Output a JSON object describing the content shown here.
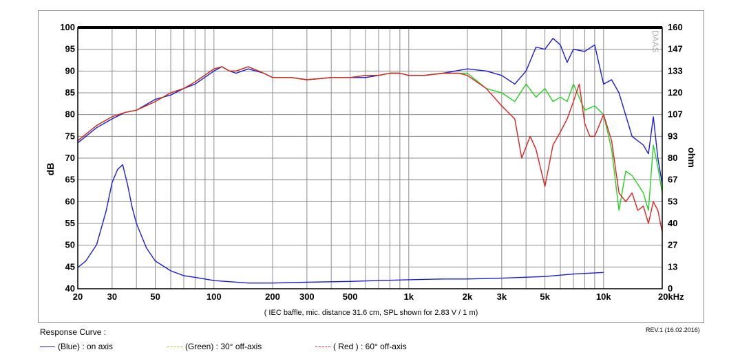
{
  "chart_data": {
    "type": "line",
    "title": "",
    "xlabel": "( IEC baffle, mic. distance 31.6 cm, SPL shown for 2.83 V / 1 m)",
    "ylabel": "dB",
    "y2label": "ohm",
    "x_scale": "log",
    "xlim": [
      20,
      20000
    ],
    "ylim": [
      40,
      100
    ],
    "y2lim": [
      0,
      160
    ],
    "grid": true,
    "x_tick_labels": [
      "20",
      "30",
      "50",
      "100",
      "200",
      "300",
      "500",
      "1k",
      "2k",
      "3k",
      "5k",
      "10k",
      "20kHz"
    ],
    "x_tick_values": [
      20,
      30,
      50,
      100,
      200,
      300,
      500,
      1000,
      2000,
      3000,
      5000,
      10000,
      20000
    ],
    "y_ticks": [
      40,
      45,
      50,
      55,
      60,
      65,
      70,
      75,
      80,
      85,
      90,
      95,
      100
    ],
    "y2_tick_labels": [
      "0",
      "13",
      "27",
      "40",
      "53",
      "67",
      "80",
      "93",
      "107",
      "120",
      "133",
      "147",
      "160"
    ],
    "watermark": "DAAS",
    "series": [
      {
        "name": "(Blue)  : on axis",
        "color": "#1a1ad6",
        "x": [
          20,
          25,
          30,
          35,
          40,
          50,
          60,
          70,
          80,
          100,
          110,
          120,
          130,
          150,
          180,
          200,
          250,
          300,
          400,
          500,
          600,
          700,
          800,
          900,
          1000,
          1200,
          1500,
          2000,
          2500,
          3000,
          3500,
          4000,
          4500,
          5000,
          5500,
          6000,
          6500,
          7000,
          8000,
          9000,
          10000,
          11000,
          12000,
          14000,
          16000,
          17000,
          18000,
          19000,
          20000
        ],
        "y": [
          73.5,
          77,
          79,
          80.5,
          81,
          83.5,
          84.5,
          86,
          87,
          90,
          91,
          90,
          89.5,
          90.5,
          89.5,
          88.5,
          88.5,
          88,
          88.5,
          88.5,
          88.5,
          89,
          89.5,
          89.5,
          89,
          89,
          89.5,
          90.5,
          90,
          89,
          87,
          90,
          95.5,
          95,
          97.5,
          96,
          92,
          95,
          94.5,
          96,
          87,
          88,
          85,
          75,
          73,
          71,
          79.5,
          70,
          64
        ]
      },
      {
        "name": "(Green) : 30° off-axis",
        "color": "#22d422",
        "x": [
          20,
          25,
          30,
          35,
          40,
          50,
          60,
          70,
          80,
          100,
          110,
          120,
          130,
          150,
          180,
          200,
          250,
          300,
          400,
          500,
          600,
          700,
          800,
          900,
          1000,
          1200,
          1500,
          2000,
          2500,
          3000,
          3500,
          4000,
          4500,
          5000,
          5500,
          6000,
          6500,
          7000,
          8000,
          9000,
          10000,
          11000,
          12000,
          13000,
          14000,
          15000,
          16000,
          17000,
          18000,
          19000,
          20000
        ],
        "y": [
          74,
          77.5,
          79.5,
          80.5,
          81,
          83,
          85,
          86,
          87.5,
          90.5,
          91,
          90,
          90,
          91,
          89.5,
          88.5,
          88.5,
          88,
          88.5,
          88.5,
          89,
          89,
          89.5,
          89.5,
          89,
          89,
          89.5,
          89.5,
          86,
          85,
          83,
          87,
          84,
          86,
          83,
          84,
          83,
          87,
          81,
          82,
          80,
          72,
          58,
          67,
          66,
          64,
          62,
          58,
          73,
          68,
          62
        ]
      },
      {
        "name": "( Red ) : 60° off-axis",
        "color": "#e02020",
        "x": [
          20,
          25,
          30,
          35,
          40,
          50,
          60,
          70,
          80,
          100,
          110,
          120,
          130,
          150,
          180,
          200,
          250,
          300,
          400,
          500,
          600,
          700,
          800,
          900,
          1000,
          1200,
          1500,
          1800,
          2000,
          2500,
          3000,
          3500,
          3800,
          4200,
          4500,
          5000,
          5500,
          6000,
          6500,
          7000,
          7500,
          8000,
          8500,
          9000,
          10000,
          11000,
          12000,
          13000,
          14000,
          15000,
          16000,
          17000,
          18000,
          19000,
          20000
        ],
        "y": [
          74,
          77.5,
          79.5,
          80.5,
          81,
          83,
          85,
          86,
          87.5,
          90.5,
          91,
          90,
          90,
          91,
          89.5,
          88.5,
          88.5,
          88,
          88.5,
          88.5,
          89,
          89,
          89.5,
          89.5,
          89,
          89,
          89.5,
          89.5,
          89,
          86,
          82,
          79,
          70,
          75,
          72,
          63.5,
          73,
          76,
          79,
          83,
          87,
          78,
          75,
          75,
          80,
          74,
          62,
          60,
          62,
          58,
          59,
          55,
          60,
          58,
          53
        ]
      },
      {
        "name": "Impedance",
        "color": "#1a1ad6",
        "axis": "right",
        "x": [
          20,
          22,
          25,
          28,
          30,
          32,
          34,
          36,
          38,
          40,
          45,
          50,
          60,
          70,
          80,
          100,
          150,
          200,
          300,
          500,
          700,
          1000,
          1500,
          2000,
          3000,
          5000,
          7000,
          10000
        ],
        "y": [
          13,
          17,
          27,
          48,
          65,
          73,
          76,
          64,
          50,
          40,
          25,
          17,
          11,
          8,
          7,
          5,
          3.5,
          3.5,
          4,
          4.5,
          5,
          5.5,
          6,
          6,
          6.5,
          7.5,
          9,
          10
        ]
      }
    ]
  },
  "footer": {
    "legend_title": "Response Curve :",
    "revision": "REV.1 (16.02.2016)",
    "legend_items": [
      {
        "label": "(Blue)  : on axis",
        "color": "#1a1ad6"
      },
      {
        "label": "(Green) : 30° off-axis",
        "color": "#9acd32"
      },
      {
        "label": "( Red ) : 60° off-axis",
        "color": "#e02020"
      }
    ]
  }
}
